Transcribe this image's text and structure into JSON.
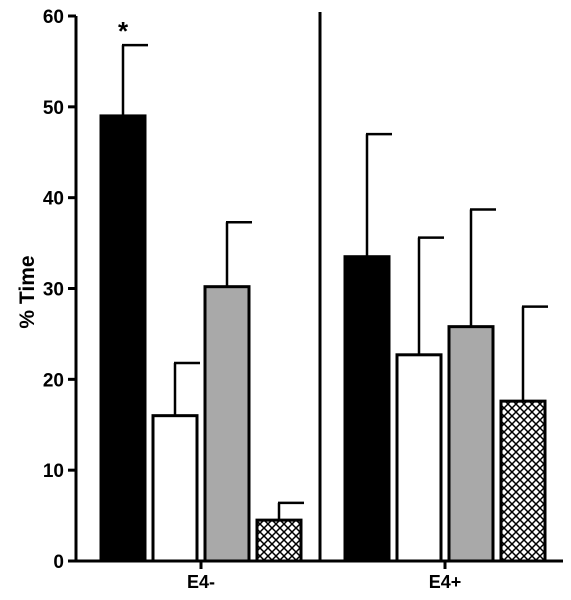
{
  "chart_data": {
    "type": "bar",
    "ylabel": "% Time",
    "ylim": [
      0,
      60
    ],
    "yticks": [
      0,
      10,
      20,
      30,
      40,
      50,
      60
    ],
    "groups": [
      {
        "label": "E4-",
        "bars": [
          {
            "value": 49.0,
            "error": 7.8,
            "fill": "black",
            "annotation": "*"
          },
          {
            "value": 16.0,
            "error": 5.8,
            "fill": "white"
          },
          {
            "value": 30.2,
            "error": 7.1,
            "fill": "gray"
          },
          {
            "value": 4.5,
            "error": 1.9,
            "fill": "crosshatch"
          }
        ]
      },
      {
        "label": "E4+",
        "bars": [
          {
            "value": 33.5,
            "error": 13.5,
            "fill": "black"
          },
          {
            "value": 22.7,
            "error": 12.9,
            "fill": "white"
          },
          {
            "value": 25.8,
            "error": 12.9,
            "fill": "gray"
          },
          {
            "value": 17.6,
            "error": 10.4,
            "fill": "crosshatch"
          }
        ]
      }
    ],
    "colors": {
      "black": "#000000",
      "white": "#ffffff",
      "gray": "#a9a9a9",
      "crosshatch": "#000000"
    },
    "separator_line": true,
    "grid": false,
    "legend": "none"
  }
}
